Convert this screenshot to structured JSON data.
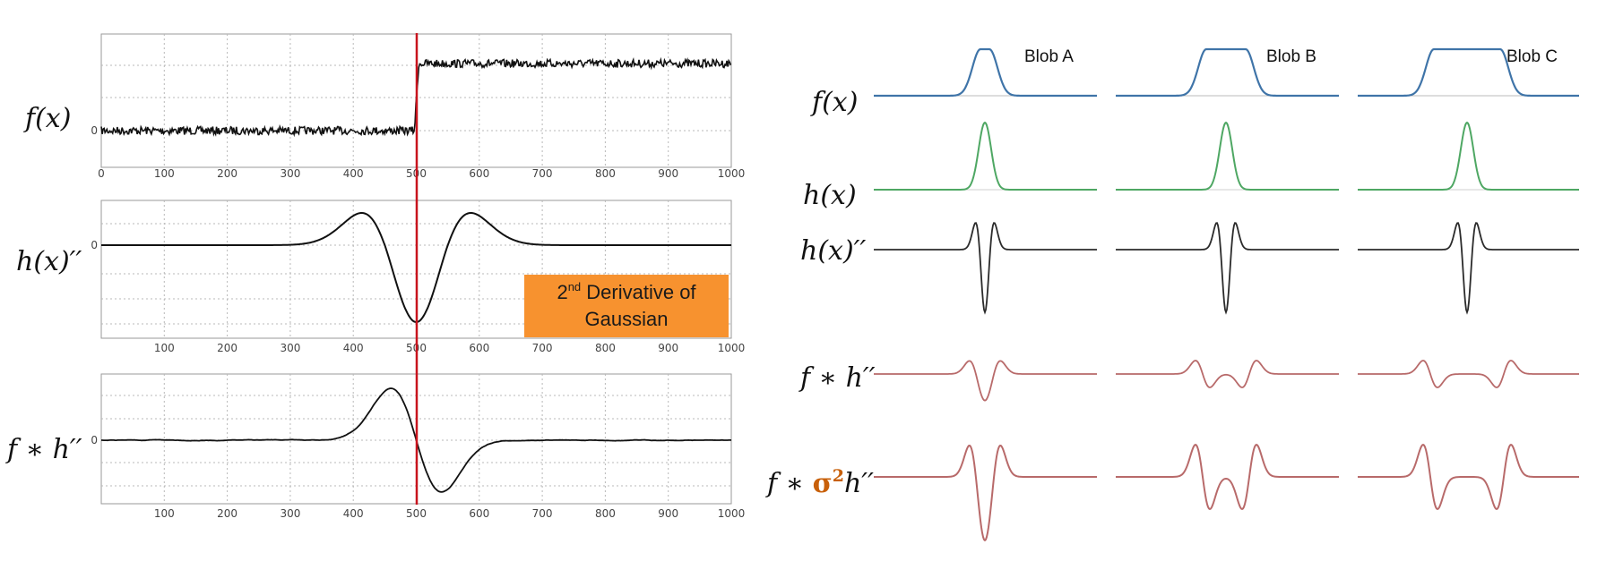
{
  "colors": {
    "signal": "#111111",
    "marker": "#c8141e",
    "callout_bg": "#f7922f",
    "blob_f": "#3f74a8",
    "blob_h": "#4ea763",
    "blob_h2": "#2b2b2b",
    "blob_conv": "#b86a6a",
    "sigma": "#c8600a",
    "grid": "#b8b8b8"
  },
  "left": {
    "marker_x": 500,
    "xlim": [
      0,
      1000
    ],
    "panels": [
      {
        "id": "f",
        "label": "f(x)",
        "x_ticks": [
          "0",
          "100",
          "200",
          "300",
          "400",
          "500",
          "600",
          "700",
          "800",
          "900",
          "1000"
        ],
        "y_tick": "0"
      },
      {
        "id": "h2",
        "label": "h(x)′′",
        "x_ticks": [
          "100",
          "200",
          "300",
          "400",
          "500",
          "600",
          "700",
          "800",
          "900",
          "1000"
        ],
        "y_tick": "0"
      },
      {
        "id": "conv",
        "label": "f ∗ h′′",
        "x_ticks": [
          "100",
          "200",
          "300",
          "400",
          "500",
          "600",
          "700",
          "800",
          "900",
          "1000"
        ],
        "y_tick": "0"
      }
    ],
    "callout": {
      "line1_prefix": "2",
      "line1_sup": "nd",
      "line1_rest": " Derivative of",
      "line2": "Gaussian"
    }
  },
  "right": {
    "blobs": [
      "Blob A",
      "Blob B",
      "Blob C"
    ],
    "row_labels": {
      "f": "f(x)",
      "h": "h(x)",
      "h2": "h(x)′′",
      "conv": "f ∗ h′′",
      "conv_norm_prefix": "f ∗ ",
      "conv_norm_sigma": "σ",
      "conv_norm_sup": "2",
      "conv_norm_suffix": "h′′"
    }
  }
}
